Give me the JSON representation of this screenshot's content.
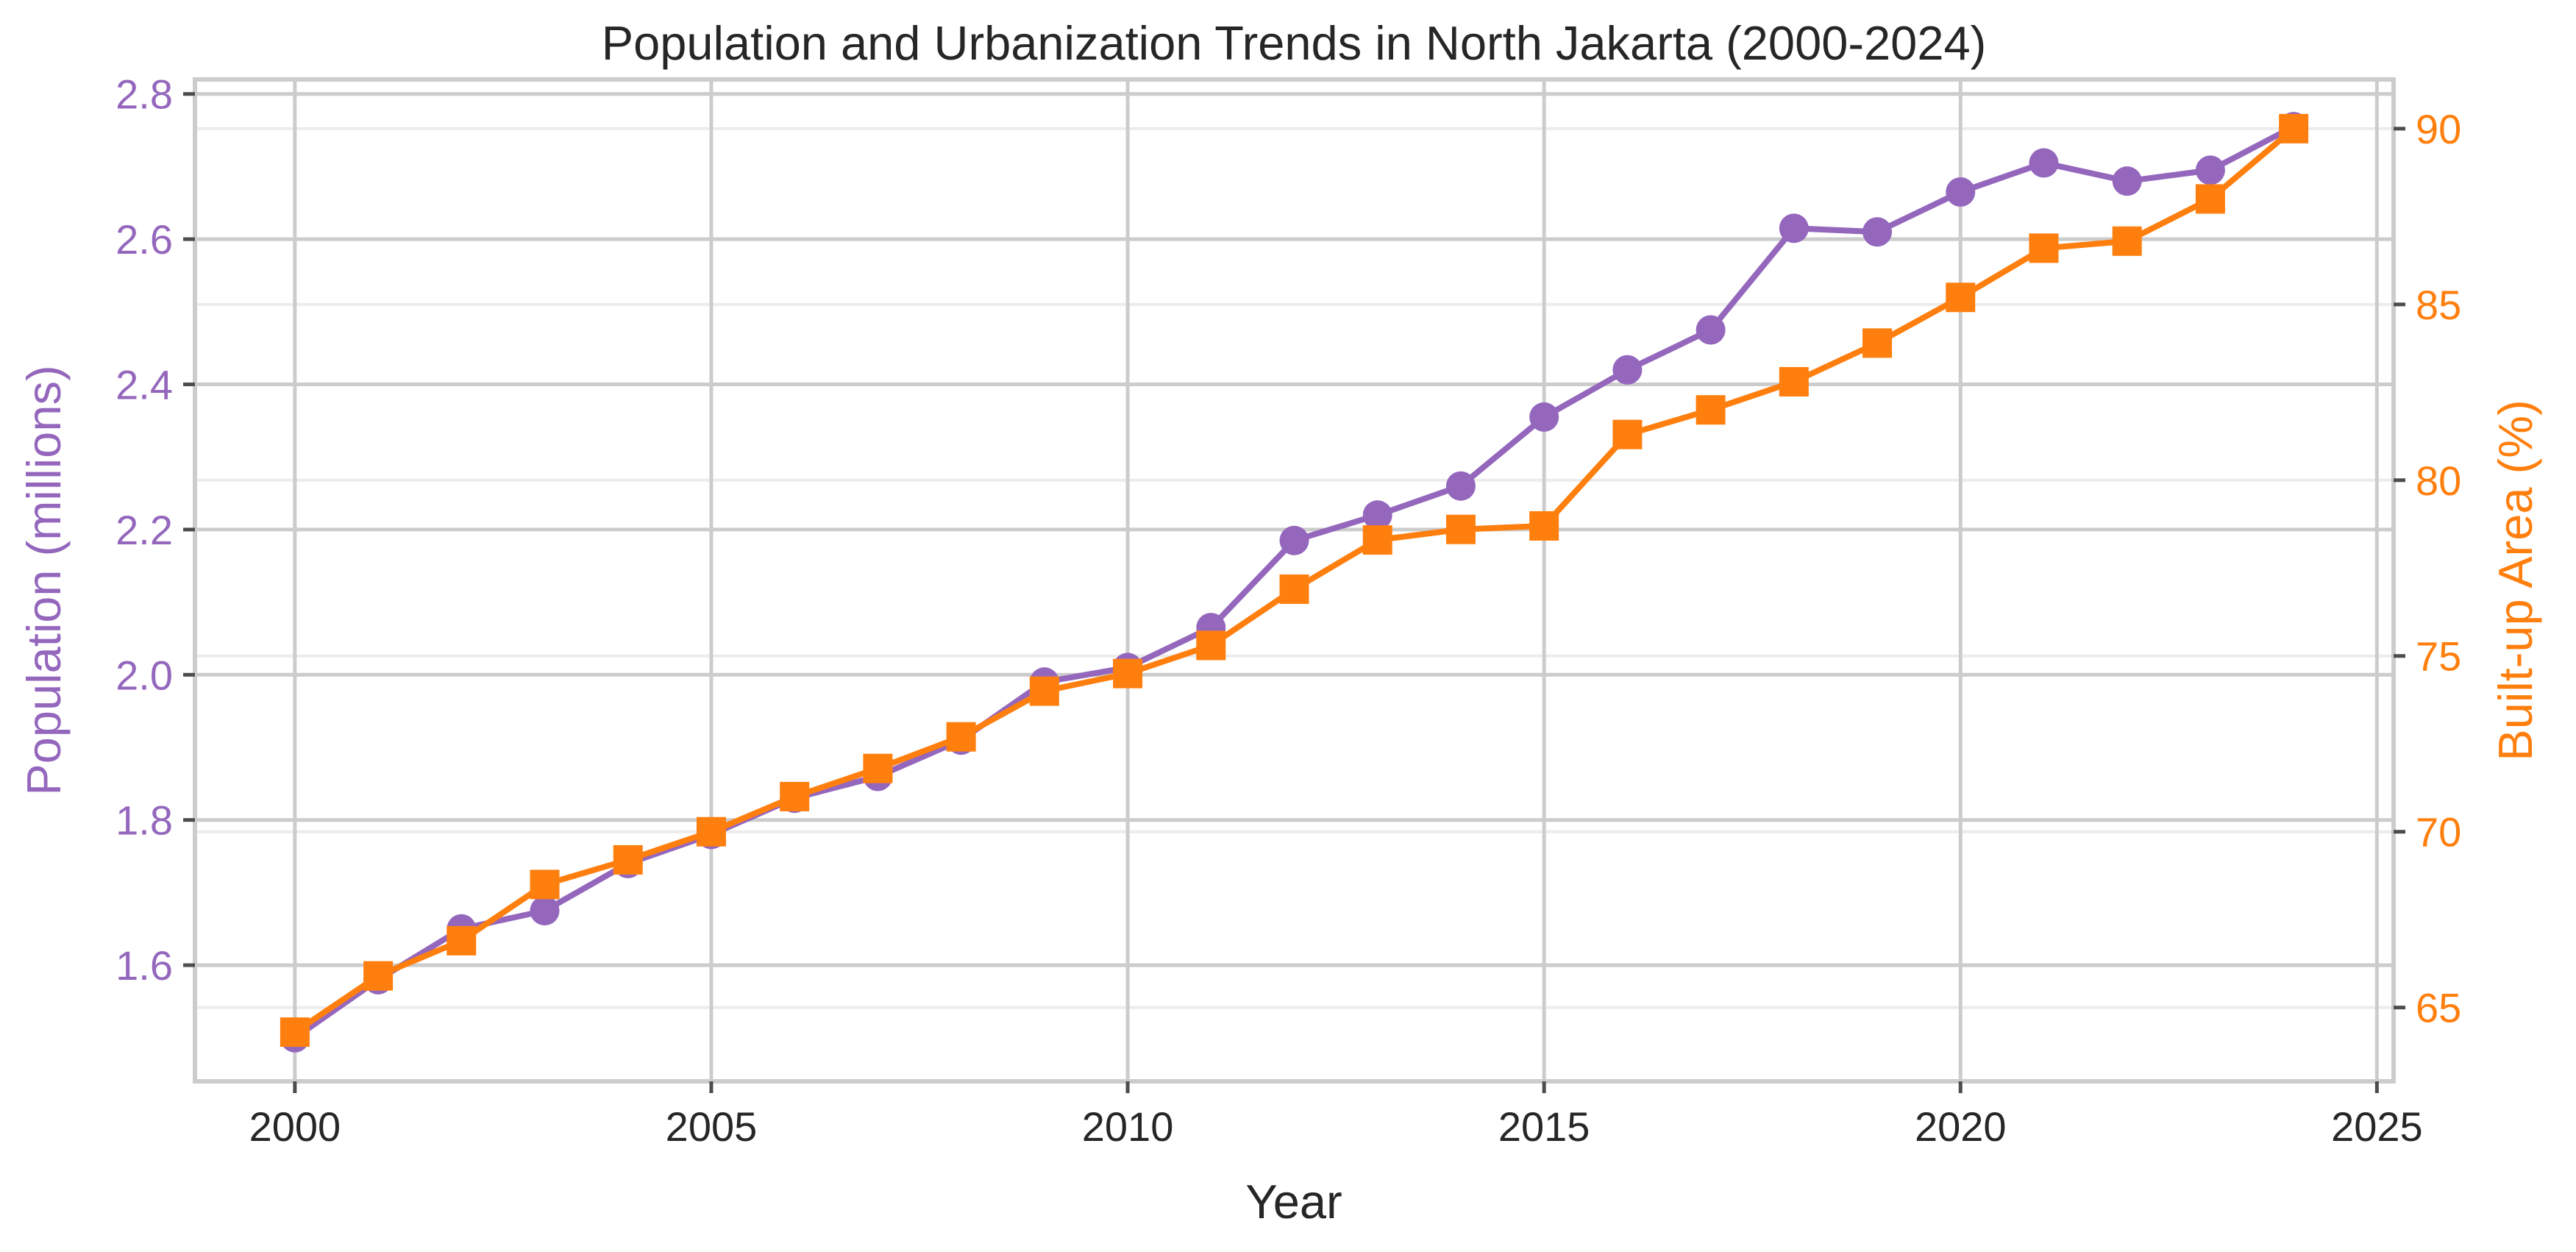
{
  "chart_data": {
    "type": "line",
    "title": "Population and Urbanization Trends in North Jakarta (2000-2024)",
    "xlabel": "Year",
    "x": [
      2000,
      2001,
      2002,
      2003,
      2004,
      2005,
      2006,
      2007,
      2008,
      2009,
      2010,
      2011,
      2012,
      2013,
      2014,
      2015,
      2016,
      2017,
      2018,
      2019,
      2020,
      2021,
      2022,
      2023,
      2024
    ],
    "xlim": [
      1998.8,
      2025.2
    ],
    "xticks": [
      2000,
      2005,
      2010,
      2015,
      2020,
      2025
    ],
    "grid": true,
    "series": [
      {
        "axis": "left",
        "marker": "circle",
        "color": "#9467bd",
        "values": [
          1.5,
          1.58,
          1.65,
          1.675,
          1.74,
          1.78,
          1.83,
          1.86,
          1.91,
          1.99,
          2.01,
          2.065,
          2.185,
          2.22,
          2.26,
          2.355,
          2.42,
          2.475,
          2.615,
          2.61,
          2.665,
          2.705,
          2.68,
          2.695,
          2.755
        ]
      },
      {
        "axis": "right",
        "marker": "square",
        "color": "#ff7f0e",
        "values": [
          64.3,
          65.9,
          66.9,
          68.5,
          69.2,
          70.0,
          71.0,
          71.8,
          72.7,
          74.0,
          74.5,
          75.3,
          76.9,
          78.3,
          78.6,
          78.7,
          81.3,
          82.0,
          82.8,
          83.9,
          85.2,
          86.6,
          86.8,
          88.0,
          90.0
        ]
      }
    ],
    "y_left": {
      "label": "Population (millions)",
      "color": "#9467bd",
      "lim": [
        1.44,
        2.82
      ],
      "ticks": [
        "1.6",
        "1.8",
        "2.0",
        "2.2",
        "2.4",
        "2.6",
        "2.8"
      ]
    },
    "y_right": {
      "label": "Built-up Area (%)",
      "color": "#ff7f0e",
      "lim": [
        62.9,
        91.4
      ],
      "ticks": [
        "65",
        "70",
        "75",
        "80",
        "85",
        "90"
      ]
    }
  }
}
